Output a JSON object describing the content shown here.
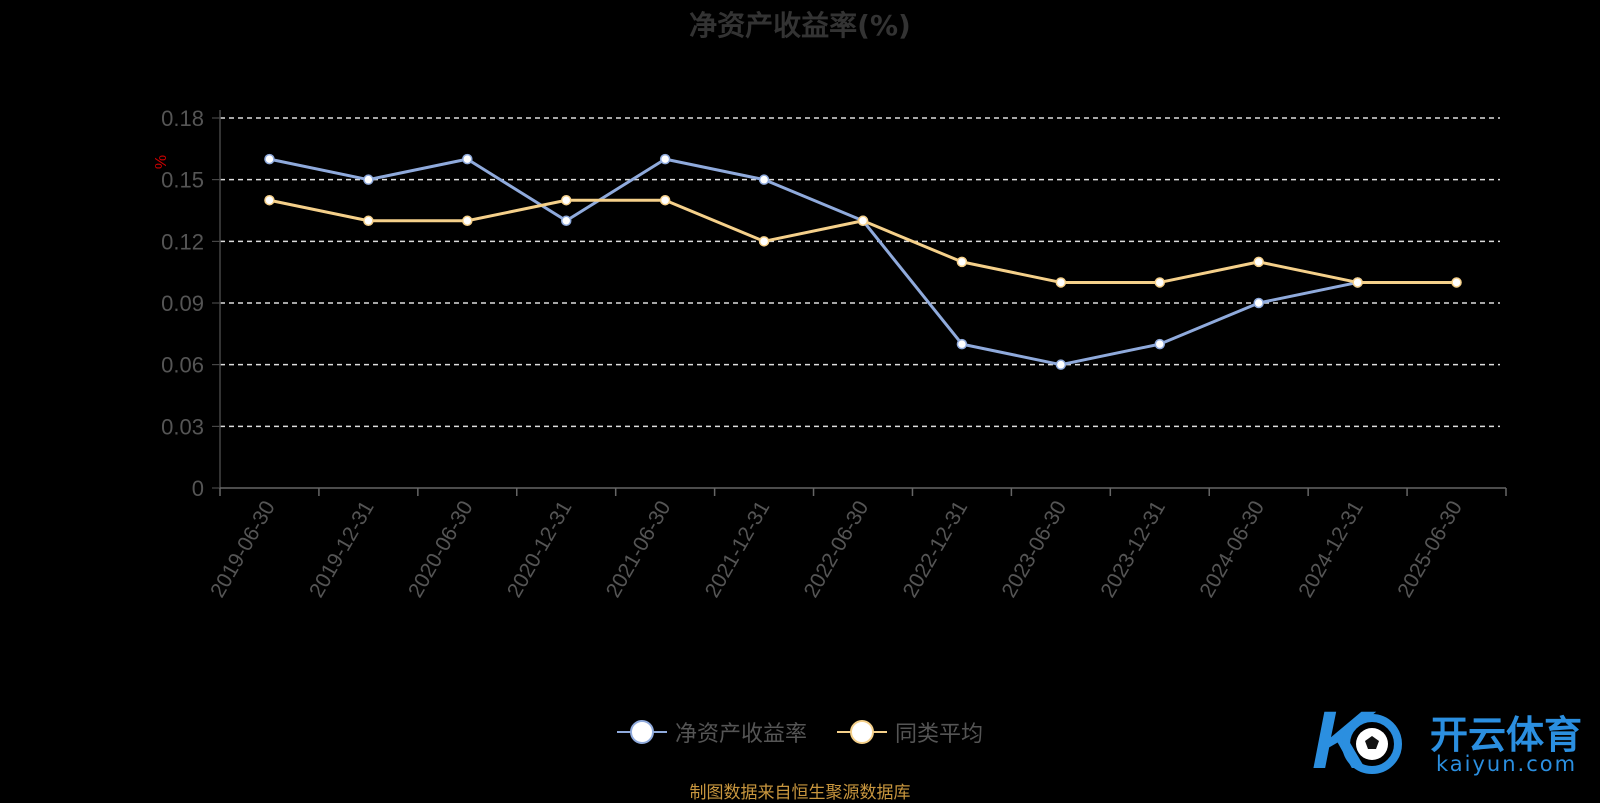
{
  "chart_data": {
    "type": "line",
    "title": "净资产收益率(%)",
    "ylabel": "%",
    "xlabel": "",
    "categories": [
      "2019-06-30",
      "2019-12-31",
      "2020-06-30",
      "2020-12-31",
      "2021-06-30",
      "2021-12-31",
      "2022-06-30",
      "2022-12-31",
      "2023-06-30",
      "2023-12-31",
      "2024-06-30",
      "2024-12-31",
      "2025-06-30"
    ],
    "y_ticks": [
      "0",
      "0.03",
      "0.06",
      "0.09",
      "0.12",
      "0.15",
      "0.18"
    ],
    "ylim": [
      0,
      0.18
    ],
    "grid": true,
    "legend_position": "bottom",
    "series": [
      {
        "name": "净资产收益率",
        "color": "#8faadc",
        "values": [
          0.16,
          0.15,
          0.16,
          0.13,
          0.16,
          0.15,
          0.13,
          0.07,
          0.06,
          0.07,
          0.09,
          0.1,
          null
        ]
      },
      {
        "name": "同类平均",
        "color": "#f5d08a",
        "values": [
          0.14,
          0.13,
          0.13,
          0.14,
          0.14,
          0.12,
          0.13,
          0.11,
          0.1,
          0.1,
          0.11,
          0.1,
          0.1
        ]
      }
    ]
  },
  "legend": [
    {
      "label": "净资产收益率",
      "color": "#8faadc"
    },
    {
      "label": "同类平均",
      "color": "#f5d08a"
    }
  ],
  "source_text": "制图数据来自恒生聚源数据库",
  "watermark": {
    "brand": "开云体育",
    "domain": "kaiyun.com",
    "logo_icon": "k-soccer-ball-logo"
  }
}
